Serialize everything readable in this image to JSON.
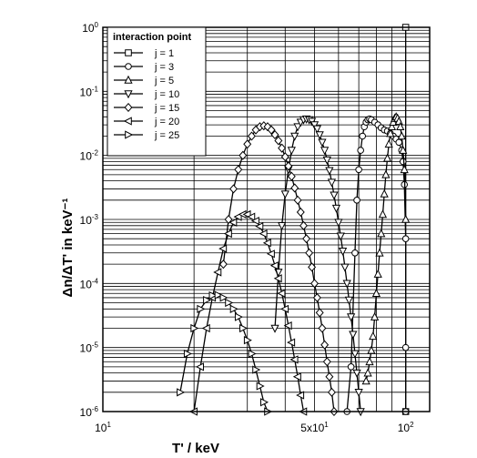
{
  "chart_data": {
    "type": "line",
    "xlabel": "T' / keV",
    "ylabel": "Δn/ΔT' in keV⁻¹",
    "xscale": "log",
    "yscale": "log",
    "xlim": [
      10,
      120
    ],
    "ylim": [
      1e-06,
      1
    ],
    "grid": true,
    "legend_title": "interaction point",
    "legend_position": "top-left",
    "x_ticks": [
      {
        "value": 10,
        "label": "10",
        "sup": "1"
      },
      {
        "value": 50,
        "label": "5x10",
        "sup": "1"
      },
      {
        "value": 100,
        "label": "10",
        "sup": "2"
      }
    ],
    "y_ticks": [
      {
        "value": 1,
        "label": "10",
        "sup": "0"
      },
      {
        "value": 0.1,
        "label": "10",
        "sup": "-1"
      },
      {
        "value": 0.01,
        "label": "10",
        "sup": "-2"
      },
      {
        "value": 0.001,
        "label": "10",
        "sup": "-3"
      },
      {
        "value": 0.0001,
        "label": "10",
        "sup": "-4"
      },
      {
        "value": 1e-05,
        "label": "10",
        "sup": "-5"
      },
      {
        "value": 1e-06,
        "label": "10",
        "sup": "-6"
      }
    ],
    "series": [
      {
        "name": "j = 1",
        "marker": "square",
        "points": [
          [
            100,
            1.0
          ],
          [
            100,
            1e-06
          ]
        ]
      },
      {
        "name": "j = 3",
        "marker": "circle",
        "points": [
          [
            64,
            1e-06
          ],
          [
            66,
            5e-06
          ],
          [
            68,
            0.0003
          ],
          [
            69,
            0.002
          ],
          [
            70,
            0.006
          ],
          [
            71,
            0.012
          ],
          [
            72,
            0.02
          ],
          [
            73,
            0.028
          ],
          [
            74,
            0.033
          ],
          [
            75,
            0.036
          ],
          [
            76,
            0.037
          ],
          [
            77,
            0.036
          ],
          [
            79,
            0.033
          ],
          [
            81,
            0.03
          ],
          [
            83,
            0.027
          ],
          [
            85,
            0.025
          ],
          [
            87,
            0.024
          ],
          [
            89,
            0.022
          ],
          [
            91,
            0.02
          ],
          [
            93,
            0.018
          ],
          [
            95,
            0.016
          ],
          [
            97,
            0.012
          ],
          [
            98,
            0.008
          ],
          [
            99,
            0.0035
          ],
          [
            100,
            0.0005
          ],
          [
            100,
            1e-05
          ],
          [
            100,
            1e-06
          ]
        ]
      },
      {
        "name": "j = 5",
        "marker": "triangle-up",
        "points": [
          [
            74,
            3e-06
          ],
          [
            75,
            4e-06
          ],
          [
            76,
            6e-06
          ],
          [
            77,
            9e-06
          ],
          [
            78,
            1.5e-05
          ],
          [
            79,
            3e-05
          ],
          [
            80,
            7e-05
          ],
          [
            81,
            0.00014
          ],
          [
            82,
            0.0003
          ],
          [
            83,
            0.0006
          ],
          [
            84,
            0.0012
          ],
          [
            85,
            0.0025
          ],
          [
            86,
            0.005
          ],
          [
            87,
            0.009
          ],
          [
            88,
            0.015
          ],
          [
            89,
            0.022
          ],
          [
            90,
            0.028
          ],
          [
            91,
            0.033
          ],
          [
            92,
            0.038
          ],
          [
            93,
            0.04
          ],
          [
            94,
            0.038
          ],
          [
            95,
            0.034
          ],
          [
            96,
            0.028
          ],
          [
            97,
            0.02
          ],
          [
            98,
            0.012
          ],
          [
            99,
            0.006
          ],
          [
            100,
            0.001
          ]
        ]
      },
      {
        "name": "j = 10",
        "marker": "triangle-down",
        "points": [
          [
            37,
            2e-05
          ],
          [
            38,
            0.00015
          ],
          [
            39,
            0.0008
          ],
          [
            40,
            0.0025
          ],
          [
            41,
            0.006
          ],
          [
            42,
            0.012
          ],
          [
            43,
            0.02
          ],
          [
            44,
            0.028
          ],
          [
            45,
            0.033
          ],
          [
            46,
            0.036
          ],
          [
            47,
            0.037
          ],
          [
            48,
            0.036
          ],
          [
            49,
            0.034
          ],
          [
            50,
            0.03
          ],
          [
            51,
            0.026
          ],
          [
            52,
            0.021
          ],
          [
            53,
            0.016
          ],
          [
            54,
            0.012
          ],
          [
            55,
            0.0085
          ],
          [
            56,
            0.0058
          ],
          [
            57,
            0.0038
          ],
          [
            58,
            0.0024
          ],
          [
            59,
            0.0015
          ],
          [
            60,
            0.0009
          ],
          [
            61,
            0.00055
          ],
          [
            62,
            0.00032
          ],
          [
            63,
            0.00018
          ],
          [
            64,
            0.0001
          ],
          [
            65,
            5.5e-05
          ],
          [
            66,
            3e-05
          ],
          [
            67,
            1.6e-05
          ],
          [
            68,
            8e-06
          ],
          [
            69,
            4e-06
          ],
          [
            70,
            2e-06
          ],
          [
            71,
            1e-06
          ]
        ]
      },
      {
        "name": "j = 15",
        "marker": "diamond",
        "points": [
          [
            25,
            0.0002
          ],
          [
            26,
            0.001
          ],
          [
            27,
            0.003
          ],
          [
            28,
            0.006
          ],
          [
            29,
            0.01
          ],
          [
            30,
            0.015
          ],
          [
            31,
            0.02
          ],
          [
            32,
            0.025
          ],
          [
            33,
            0.028
          ],
          [
            34,
            0.029
          ],
          [
            35,
            0.028
          ],
          [
            36,
            0.025
          ],
          [
            37,
            0.021
          ],
          [
            38,
            0.017
          ],
          [
            39,
            0.013
          ],
          [
            40,
            0.0095
          ],
          [
            41,
            0.0068
          ],
          [
            42,
            0.0047
          ],
          [
            43,
            0.0031
          ],
          [
            44,
            0.002
          ],
          [
            45,
            0.0013
          ],
          [
            46,
            0.0008
          ],
          [
            47,
            0.0005
          ],
          [
            48,
            0.0003
          ],
          [
            49,
            0.00018
          ],
          [
            50,
            0.0001
          ],
          [
            51,
            6e-05
          ],
          [
            52,
            3.5e-05
          ],
          [
            53,
            2e-05
          ],
          [
            54,
            1.1e-05
          ],
          [
            55,
            6e-06
          ],
          [
            56,
            3.5e-06
          ],
          [
            57,
            2e-06
          ],
          [
            58,
            1e-06
          ]
        ]
      },
      {
        "name": "j = 20",
        "marker": "triangle-left",
        "points": [
          [
            20,
            1e-06
          ],
          [
            21,
            5e-06
          ],
          [
            22,
            2e-05
          ],
          [
            23,
            6e-05
          ],
          [
            24,
            0.00015
          ],
          [
            25,
            0.00035
          ],
          [
            26,
            0.0006
          ],
          [
            27,
            0.0009
          ],
          [
            28,
            0.0011
          ],
          [
            29,
            0.0012
          ],
          [
            30,
            0.0012
          ],
          [
            31,
            0.0011
          ],
          [
            32,
            0.00095
          ],
          [
            33,
            0.00078
          ],
          [
            34,
            0.0006
          ],
          [
            35,
            0.00043
          ],
          [
            36,
            0.00029
          ],
          [
            37,
            0.00019
          ],
          [
            38,
            0.00012
          ],
          [
            39,
            7e-05
          ],
          [
            40,
            4e-05
          ],
          [
            41,
            2.2e-05
          ],
          [
            42,
            1.2e-05
          ],
          [
            43,
            6.5e-06
          ],
          [
            44,
            3.5e-06
          ],
          [
            45,
            1.8e-06
          ],
          [
            46,
            1e-06
          ]
        ]
      },
      {
        "name": "j = 25",
        "marker": "triangle-right",
        "points": [
          [
            18,
            2e-06
          ],
          [
            19,
            8e-06
          ],
          [
            20,
            2e-05
          ],
          [
            21,
            4e-05
          ],
          [
            22,
            5.5e-05
          ],
          [
            23,
            6.5e-05
          ],
          [
            24,
            6.6e-05
          ],
          [
            25,
            6e-05
          ],
          [
            26,
            5e-05
          ],
          [
            27,
            4e-05
          ],
          [
            28,
            3e-05
          ],
          [
            29,
            2e-05
          ],
          [
            30,
            1.3e-05
          ],
          [
            31,
            8e-06
          ],
          [
            32,
            4.5e-06
          ],
          [
            33,
            2.5e-06
          ],
          [
            34,
            1.4e-06
          ],
          [
            35,
            1e-06
          ]
        ]
      }
    ]
  }
}
